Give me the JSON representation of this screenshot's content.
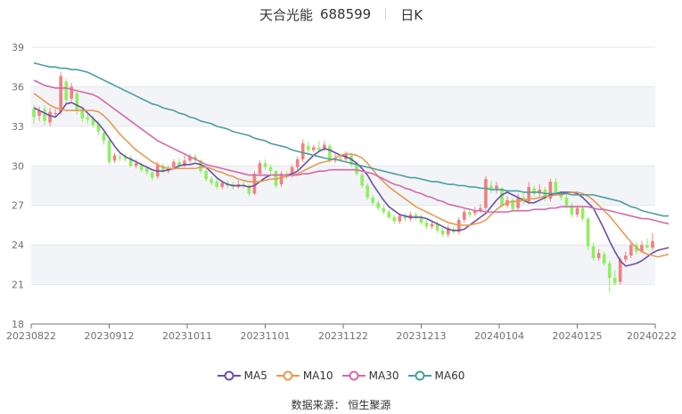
{
  "header": {
    "stock_name": "天合光能",
    "stock_code": "688599",
    "period": "日K"
  },
  "source": "数据来源： 恒生聚源",
  "chart_data": {
    "type": "candlestick",
    "y_ticks": [
      18,
      21,
      24,
      27,
      30,
      33,
      36,
      39
    ],
    "ylim": [
      18,
      39
    ],
    "x_tick_labels": [
      "20230822",
      "20230912",
      "20231011",
      "20231101",
      "20231122",
      "20231213",
      "20240104",
      "20240125",
      "20240222"
    ],
    "grid": "horizontal-bands",
    "colors": {
      "up": "#f08080",
      "down": "#90ee60",
      "ma5": "#6a4fa8",
      "ma10": "#e59a55",
      "ma30": "#d46aa8",
      "ma60": "#4b9f9e"
    },
    "candles": [
      {
        "o": 34.3,
        "c": 33.7,
        "h": 34.6,
        "l": 33.2
      },
      {
        "o": 33.8,
        "c": 34.2,
        "h": 34.5,
        "l": 33.4
      },
      {
        "o": 34.3,
        "c": 33.4,
        "h": 34.6,
        "l": 33.1
      },
      {
        "o": 33.3,
        "c": 34.1,
        "h": 34.4,
        "l": 33.0
      },
      {
        "o": 34.0,
        "c": 34.0,
        "h": 34.3,
        "l": 33.7
      },
      {
        "o": 34.1,
        "c": 36.8,
        "h": 37.1,
        "l": 33.9
      },
      {
        "o": 36.4,
        "c": 35.0,
        "h": 36.6,
        "l": 34.7
      },
      {
        "o": 35.1,
        "c": 36.0,
        "h": 36.3,
        "l": 34.9
      },
      {
        "o": 35.5,
        "c": 34.2,
        "h": 35.7,
        "l": 33.9
      },
      {
        "o": 34.3,
        "c": 33.6,
        "h": 34.5,
        "l": 33.3
      },
      {
        "o": 33.7,
        "c": 33.5,
        "h": 33.9,
        "l": 33.2
      },
      {
        "o": 33.6,
        "c": 33.1,
        "h": 33.8,
        "l": 32.9
      },
      {
        "o": 33.2,
        "c": 32.6,
        "h": 33.4,
        "l": 32.3
      },
      {
        "o": 32.5,
        "c": 31.9,
        "h": 32.7,
        "l": 31.6
      },
      {
        "o": 31.9,
        "c": 30.3,
        "h": 32.0,
        "l": 30.1
      },
      {
        "o": 30.4,
        "c": 30.8,
        "h": 31.0,
        "l": 30.2
      },
      {
        "o": 30.7,
        "c": 30.6,
        "h": 31.0,
        "l": 30.4
      },
      {
        "o": 30.6,
        "c": 30.5,
        "h": 30.9,
        "l": 30.3
      },
      {
        "o": 30.6,
        "c": 30.0,
        "h": 30.8,
        "l": 29.9
      },
      {
        "o": 30.0,
        "c": 30.2,
        "h": 30.5,
        "l": 29.8
      },
      {
        "o": 30.1,
        "c": 29.7,
        "h": 30.3,
        "l": 29.5
      },
      {
        "o": 29.8,
        "c": 29.5,
        "h": 30.0,
        "l": 29.3
      },
      {
        "o": 29.5,
        "c": 29.1,
        "h": 29.7,
        "l": 28.9
      },
      {
        "o": 29.2,
        "c": 30.1,
        "h": 30.3,
        "l": 29.0
      },
      {
        "o": 30.0,
        "c": 29.6,
        "h": 30.2,
        "l": 29.4
      },
      {
        "o": 29.6,
        "c": 29.8,
        "h": 30.0,
        "l": 29.4
      },
      {
        "o": 29.9,
        "c": 30.3,
        "h": 30.5,
        "l": 29.7
      },
      {
        "o": 30.3,
        "c": 30.0,
        "h": 30.6,
        "l": 29.8
      },
      {
        "o": 30.0,
        "c": 30.4,
        "h": 30.8,
        "l": 29.9
      },
      {
        "o": 30.4,
        "c": 30.7,
        "h": 30.9,
        "l": 30.2
      },
      {
        "o": 30.7,
        "c": 30.5,
        "h": 30.9,
        "l": 30.3
      },
      {
        "o": 30.4,
        "c": 29.6,
        "h": 30.5,
        "l": 29.4
      },
      {
        "o": 29.6,
        "c": 29.0,
        "h": 29.8,
        "l": 28.8
      },
      {
        "o": 29.0,
        "c": 28.7,
        "h": 29.2,
        "l": 28.5
      },
      {
        "o": 28.8,
        "c": 28.4,
        "h": 29.0,
        "l": 28.2
      },
      {
        "o": 28.4,
        "c": 28.7,
        "h": 28.9,
        "l": 28.2
      },
      {
        "o": 28.7,
        "c": 28.5,
        "h": 28.9,
        "l": 28.3
      },
      {
        "o": 28.6,
        "c": 28.4,
        "h": 28.8,
        "l": 28.2
      },
      {
        "o": 28.4,
        "c": 28.6,
        "h": 28.9,
        "l": 28.3
      },
      {
        "o": 28.6,
        "c": 28.5,
        "h": 28.9,
        "l": 28.3
      },
      {
        "o": 28.5,
        "c": 27.9,
        "h": 28.6,
        "l": 27.7
      },
      {
        "o": 27.9,
        "c": 29.4,
        "h": 29.6,
        "l": 27.8
      },
      {
        "o": 29.4,
        "c": 30.2,
        "h": 30.4,
        "l": 29.2
      },
      {
        "o": 30.2,
        "c": 29.9,
        "h": 30.5,
        "l": 29.7
      },
      {
        "o": 29.9,
        "c": 29.6,
        "h": 30.1,
        "l": 29.4
      },
      {
        "o": 29.6,
        "c": 28.5,
        "h": 29.7,
        "l": 28.3
      },
      {
        "o": 28.6,
        "c": 29.4,
        "h": 29.6,
        "l": 28.4
      },
      {
        "o": 29.4,
        "c": 29.3,
        "h": 29.6,
        "l": 29.0
      },
      {
        "o": 29.3,
        "c": 29.9,
        "h": 30.1,
        "l": 29.1
      },
      {
        "o": 29.9,
        "c": 30.5,
        "h": 30.7,
        "l": 29.7
      },
      {
        "o": 30.5,
        "c": 31.7,
        "h": 32.0,
        "l": 30.3
      },
      {
        "o": 31.5,
        "c": 31.2,
        "h": 31.8,
        "l": 30.9
      },
      {
        "o": 31.2,
        "c": 31.4,
        "h": 31.6,
        "l": 31.0
      },
      {
        "o": 31.4,
        "c": 31.2,
        "h": 31.9,
        "l": 31.0
      },
      {
        "o": 31.3,
        "c": 31.6,
        "h": 31.9,
        "l": 31.1
      },
      {
        "o": 31.5,
        "c": 30.4,
        "h": 31.7,
        "l": 30.2
      },
      {
        "o": 30.4,
        "c": 30.6,
        "h": 30.9,
        "l": 30.2
      },
      {
        "o": 30.6,
        "c": 30.5,
        "h": 30.8,
        "l": 30.3
      },
      {
        "o": 30.5,
        "c": 30.9,
        "h": 31.1,
        "l": 30.3
      },
      {
        "o": 30.8,
        "c": 30.1,
        "h": 31.0,
        "l": 29.9
      },
      {
        "o": 30.1,
        "c": 29.4,
        "h": 30.3,
        "l": 29.2
      },
      {
        "o": 29.3,
        "c": 28.5,
        "h": 29.5,
        "l": 28.3
      },
      {
        "o": 28.5,
        "c": 27.6,
        "h": 28.7,
        "l": 27.4
      },
      {
        "o": 27.6,
        "c": 27.2,
        "h": 27.8,
        "l": 27.0
      },
      {
        "o": 27.2,
        "c": 26.8,
        "h": 27.4,
        "l": 26.6
      },
      {
        "o": 26.8,
        "c": 26.5,
        "h": 27.0,
        "l": 26.3
      },
      {
        "o": 26.5,
        "c": 26.1,
        "h": 26.7,
        "l": 25.9
      },
      {
        "o": 26.1,
        "c": 25.8,
        "h": 26.3,
        "l": 25.6
      },
      {
        "o": 25.8,
        "c": 26.2,
        "h": 26.4,
        "l": 25.6
      },
      {
        "o": 26.2,
        "c": 26.0,
        "h": 26.4,
        "l": 25.8
      },
      {
        "o": 26.0,
        "c": 26.3,
        "h": 26.5,
        "l": 25.8
      },
      {
        "o": 26.3,
        "c": 26.1,
        "h": 26.5,
        "l": 25.9
      },
      {
        "o": 26.1,
        "c": 25.7,
        "h": 26.3,
        "l": 25.5
      },
      {
        "o": 25.7,
        "c": 25.4,
        "h": 25.9,
        "l": 25.2
      },
      {
        "o": 25.4,
        "c": 25.6,
        "h": 25.8,
        "l": 25.2
      },
      {
        "o": 25.6,
        "c": 25.1,
        "h": 25.8,
        "l": 24.9
      },
      {
        "o": 25.1,
        "c": 24.8,
        "h": 25.3,
        "l": 24.6
      },
      {
        "o": 24.8,
        "c": 25.3,
        "h": 25.5,
        "l": 24.6
      },
      {
        "o": 25.2,
        "c": 25.0,
        "h": 25.4,
        "l": 24.8
      },
      {
        "o": 25.0,
        "c": 25.9,
        "h": 26.1,
        "l": 24.8
      },
      {
        "o": 25.9,
        "c": 26.5,
        "h": 26.7,
        "l": 25.7
      },
      {
        "o": 26.5,
        "c": 26.3,
        "h": 26.8,
        "l": 26.1
      },
      {
        "o": 26.4,
        "c": 26.6,
        "h": 26.9,
        "l": 26.2
      },
      {
        "o": 26.6,
        "c": 26.8,
        "h": 27.1,
        "l": 26.4
      },
      {
        "o": 26.8,
        "c": 29.0,
        "h": 29.2,
        "l": 26.6
      },
      {
        "o": 28.5,
        "c": 28.2,
        "h": 28.9,
        "l": 27.9
      },
      {
        "o": 28.2,
        "c": 28.5,
        "h": 28.8,
        "l": 27.9
      },
      {
        "o": 28.3,
        "c": 27.0,
        "h": 28.4,
        "l": 26.8
      },
      {
        "o": 27.0,
        "c": 27.4,
        "h": 27.7,
        "l": 26.8
      },
      {
        "o": 27.4,
        "c": 26.7,
        "h": 27.6,
        "l": 26.5
      },
      {
        "o": 26.8,
        "c": 27.6,
        "h": 27.9,
        "l": 26.6
      },
      {
        "o": 27.6,
        "c": 27.3,
        "h": 27.9,
        "l": 27.1
      },
      {
        "o": 27.3,
        "c": 28.4,
        "h": 28.8,
        "l": 27.1
      },
      {
        "o": 28.3,
        "c": 27.9,
        "h": 28.5,
        "l": 27.7
      },
      {
        "o": 27.9,
        "c": 28.2,
        "h": 28.6,
        "l": 27.7
      },
      {
        "o": 28.2,
        "c": 27.5,
        "h": 28.4,
        "l": 27.3
      },
      {
        "o": 27.5,
        "c": 28.8,
        "h": 29.0,
        "l": 27.3
      },
      {
        "o": 28.8,
        "c": 27.9,
        "h": 29.1,
        "l": 27.7
      },
      {
        "o": 27.9,
        "c": 27.6,
        "h": 28.1,
        "l": 27.4
      },
      {
        "o": 27.6,
        "c": 27.0,
        "h": 27.8,
        "l": 26.8
      },
      {
        "o": 27.0,
        "c": 26.3,
        "h": 27.2,
        "l": 26.1
      },
      {
        "o": 26.3,
        "c": 26.8,
        "h": 27.0,
        "l": 26.1
      },
      {
        "o": 26.8,
        "c": 26.0,
        "h": 27.0,
        "l": 25.8
      },
      {
        "o": 26.0,
        "c": 23.9,
        "h": 26.1,
        "l": 23.6
      },
      {
        "o": 23.9,
        "c": 23.0,
        "h": 24.2,
        "l": 22.8
      },
      {
        "o": 23.0,
        "c": 23.4,
        "h": 23.7,
        "l": 22.8
      },
      {
        "o": 23.3,
        "c": 22.6,
        "h": 23.5,
        "l": 22.4
      },
      {
        "o": 22.6,
        "c": 21.5,
        "h": 22.8,
        "l": 20.4
      },
      {
        "o": 21.5,
        "c": 21.1,
        "h": 22.1,
        "l": 20.9
      },
      {
        "o": 21.2,
        "c": 22.9,
        "h": 23.1,
        "l": 21.0
      },
      {
        "o": 22.9,
        "c": 23.2,
        "h": 23.5,
        "l": 22.7
      },
      {
        "o": 23.2,
        "c": 24.0,
        "h": 24.2,
        "l": 23.0
      },
      {
        "o": 24.0,
        "c": 23.5,
        "h": 24.2,
        "l": 23.3
      },
      {
        "o": 23.5,
        "c": 24.0,
        "h": 24.3,
        "l": 23.4
      },
      {
        "o": 24.0,
        "c": 23.8,
        "h": 24.5,
        "l": 23.7
      },
      {
        "o": 23.8,
        "c": 24.3,
        "h": 24.9,
        "l": 23.6
      }
    ],
    "series": [
      {
        "name": "MA5",
        "color": "#6a4fa8",
        "values": [
          34.4,
          34.2,
          34.0,
          33.8,
          33.7,
          34.1,
          34.7,
          34.8,
          34.6,
          34.4,
          34.0,
          33.6,
          33.2,
          32.7,
          32.1,
          31.5,
          31.0,
          30.7,
          30.5,
          30.3,
          30.1,
          29.9,
          29.7,
          29.6,
          29.6,
          29.7,
          29.8,
          30.0,
          30.1,
          30.1,
          30.2,
          30.1,
          29.9,
          29.5,
          29.1,
          28.8,
          28.6,
          28.5,
          28.5,
          28.5,
          28.4,
          28.5,
          28.8,
          29.1,
          29.3,
          29.3,
          29.3,
          29.3,
          29.4,
          29.6,
          30.0,
          30.4,
          30.8,
          31.1,
          31.3,
          31.2,
          31.0,
          30.8,
          30.7,
          30.5,
          30.2,
          29.8,
          29.3,
          28.6,
          28.0,
          27.4,
          26.9,
          26.6,
          26.3,
          26.2,
          26.1,
          26.1,
          26.1,
          26.0,
          25.8,
          25.6,
          25.4,
          25.2,
          25.1,
          25.1,
          25.2,
          25.5,
          25.8,
          26.1,
          26.4,
          26.9,
          27.4,
          27.8,
          28.0,
          27.8,
          27.6,
          27.4,
          27.2,
          27.2,
          27.4,
          27.6,
          27.8,
          27.9,
          28.0,
          28.0,
          28.0,
          27.9,
          27.6,
          27.2,
          26.8,
          26.0,
          25.2,
          24.3,
          23.5,
          22.8,
          22.4,
          22.5,
          22.6,
          22.8,
          23.1,
          23.4,
          23.6,
          23.7,
          23.8
        ]
      },
      {
        "name": "MA10",
        "color": "#e59a55",
        "values": [
          35.5,
          35.2,
          34.9,
          34.6,
          34.4,
          34.3,
          34.2,
          34.2,
          34.2,
          34.2,
          34.2,
          34.2,
          34.1,
          33.8,
          33.4,
          32.9,
          32.4,
          32.0,
          31.6,
          31.2,
          30.9,
          30.6,
          30.3,
          30.1,
          29.9,
          29.8,
          29.8,
          29.8,
          29.8,
          29.8,
          29.8,
          29.9,
          29.9,
          29.8,
          29.6,
          29.5,
          29.3,
          29.2,
          29.0,
          28.9,
          28.8,
          28.8,
          28.8,
          28.9,
          29.0,
          29.0,
          29.1,
          29.2,
          29.3,
          29.4,
          29.6,
          29.8,
          30.0,
          30.2,
          30.3,
          30.4,
          30.6,
          30.8,
          30.9,
          30.9,
          30.8,
          30.6,
          30.2,
          29.7,
          29.2,
          28.8,
          28.4,
          28.1,
          27.8,
          27.5,
          27.2,
          26.9,
          26.7,
          26.5,
          26.3,
          26.1,
          25.9,
          25.7,
          25.6,
          25.5,
          25.5,
          25.5,
          25.6,
          25.7,
          25.9,
          26.3,
          26.7,
          27.0,
          27.2,
          27.3,
          27.3,
          27.4,
          27.5,
          27.5,
          27.6,
          27.7,
          27.7,
          27.8,
          27.8,
          27.9,
          28.0,
          28.0,
          27.9,
          27.7,
          27.4,
          27.0,
          26.6,
          26.2,
          25.7,
          25.2,
          24.7,
          24.2,
          23.8,
          23.5,
          23.3,
          23.2,
          23.1,
          23.2,
          23.3
        ]
      },
      {
        "name": "MA30",
        "color": "#d46aa8",
        "values": [
          36.5,
          36.3,
          36.1,
          36.0,
          35.9,
          35.9,
          35.9,
          35.8,
          35.7,
          35.6,
          35.5,
          35.4,
          35.2,
          34.9,
          34.6,
          34.3,
          34.0,
          33.7,
          33.4,
          33.1,
          32.8,
          32.5,
          32.2,
          31.9,
          31.7,
          31.5,
          31.3,
          31.1,
          30.9,
          30.7,
          30.5,
          30.3,
          30.1,
          30.0,
          29.9,
          29.8,
          29.7,
          29.6,
          29.5,
          29.4,
          29.3,
          29.3,
          29.3,
          29.3,
          29.3,
          29.3,
          29.3,
          29.3,
          29.3,
          29.3,
          29.4,
          29.4,
          29.5,
          29.6,
          29.6,
          29.7,
          29.7,
          29.7,
          29.7,
          29.7,
          29.7,
          29.6,
          29.5,
          29.4,
          29.2,
          29.0,
          28.8,
          28.6,
          28.5,
          28.3,
          28.2,
          28.0,
          27.9,
          27.7,
          27.6,
          27.4,
          27.3,
          27.1,
          27.0,
          26.9,
          26.8,
          26.7,
          26.6,
          26.6,
          26.5,
          26.5,
          26.5,
          26.5,
          26.5,
          26.6,
          26.6,
          26.6,
          26.6,
          26.7,
          26.7,
          26.7,
          26.8,
          26.8,
          26.9,
          26.9,
          26.9,
          26.9,
          26.9,
          26.9,
          26.8,
          26.7,
          26.7,
          26.6,
          26.5,
          26.4,
          26.3,
          26.2,
          26.1,
          26.0,
          26.0,
          25.9,
          25.8,
          25.7,
          25.6
        ]
      },
      {
        "name": "MA60",
        "color": "#4b9f9e",
        "values": [
          37.8,
          37.7,
          37.6,
          37.5,
          37.5,
          37.4,
          37.4,
          37.3,
          37.3,
          37.2,
          37.1,
          36.9,
          36.7,
          36.5,
          36.3,
          36.1,
          35.9,
          35.7,
          35.5,
          35.3,
          35.1,
          34.9,
          34.7,
          34.6,
          34.4,
          34.3,
          34.2,
          34.0,
          33.9,
          33.7,
          33.6,
          33.4,
          33.3,
          33.2,
          33.0,
          32.9,
          32.8,
          32.6,
          32.5,
          32.4,
          32.3,
          32.1,
          32.0,
          31.9,
          31.7,
          31.6,
          31.5,
          31.4,
          31.2,
          31.1,
          31.0,
          30.9,
          30.8,
          30.7,
          30.6,
          30.5,
          30.5,
          30.4,
          30.3,
          30.2,
          30.1,
          30.0,
          29.9,
          29.8,
          29.7,
          29.6,
          29.5,
          29.4,
          29.3,
          29.2,
          29.1,
          29.1,
          29.0,
          28.9,
          28.8,
          28.8,
          28.7,
          28.6,
          28.6,
          28.5,
          28.5,
          28.4,
          28.4,
          28.3,
          28.3,
          28.2,
          28.2,
          28.2,
          28.1,
          28.1,
          28.1,
          28.0,
          28.0,
          28.0,
          28.0,
          27.9,
          27.9,
          27.9,
          27.9,
          27.9,
          27.8,
          27.8,
          27.8,
          27.8,
          27.8,
          27.7,
          27.6,
          27.5,
          27.4,
          27.3,
          27.1,
          26.9,
          26.8,
          26.6,
          26.5,
          26.4,
          26.3,
          26.2,
          26.2
        ]
      }
    ]
  }
}
